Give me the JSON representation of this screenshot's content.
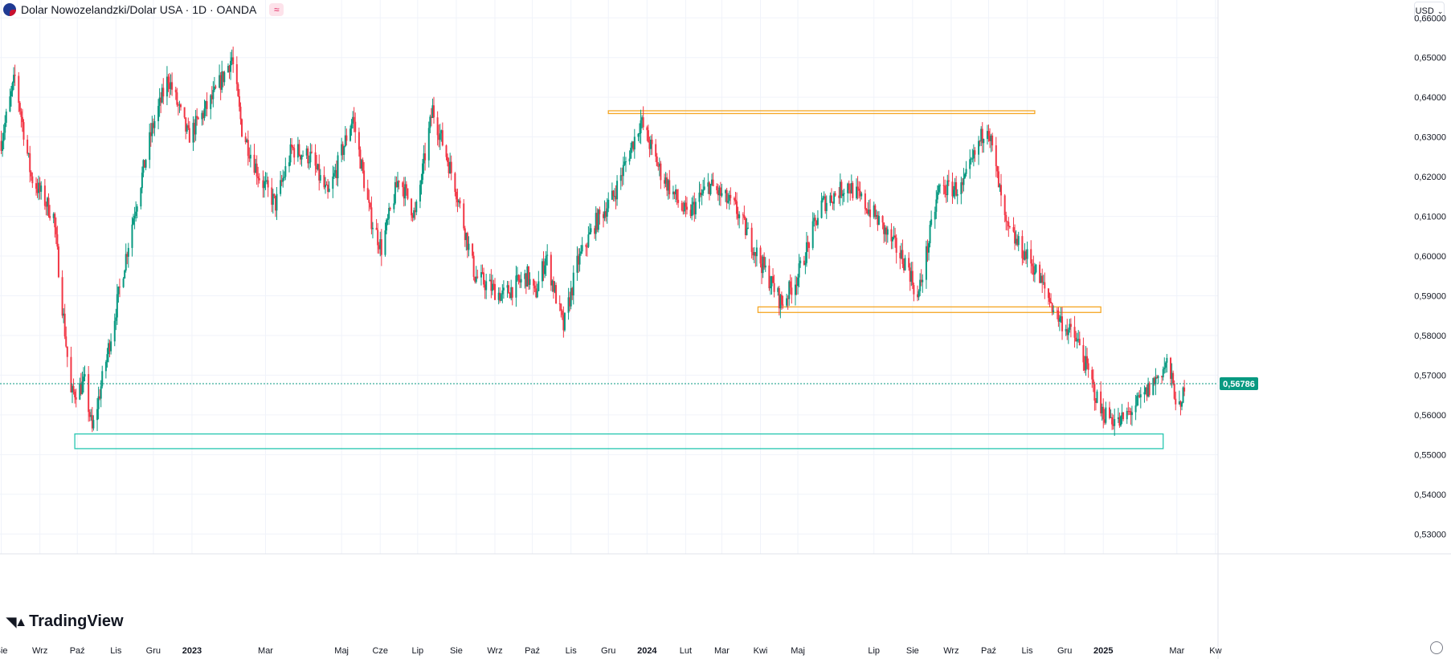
{
  "header": {
    "title": "Dolar Nowozelandzki/Dolar USA · 1D · OANDA",
    "badge_icon": "waves-icon"
  },
  "currency_selector": {
    "value": "USD"
  },
  "logo": {
    "text": "TradingView"
  },
  "last_price": {
    "label": "0,56786",
    "value": 0.56786,
    "color": "#089981"
  },
  "colors": {
    "up": "#089981",
    "down": "#f23645",
    "zone_orange": "#f5a623",
    "zone_teal": "#26c6b0",
    "grid": "#f0f3fa"
  },
  "chart_data": {
    "type": "candlestick",
    "title": "Dolar Nowozelandzki/Dolar USA · 1D · OANDA",
    "ylim": [
      0.525,
      0.6645
    ],
    "y_ticks": [
      {
        "value": 0.66,
        "label": "0,66000"
      },
      {
        "value": 0.65,
        "label": "0,65000"
      },
      {
        "value": 0.64,
        "label": "0,64000"
      },
      {
        "value": 0.63,
        "label": "0,63000"
      },
      {
        "value": 0.62,
        "label": "0,62000"
      },
      {
        "value": 0.61,
        "label": "0,61000"
      },
      {
        "value": 0.6,
        "label": "0,60000"
      },
      {
        "value": 0.59,
        "label": "0,59000"
      },
      {
        "value": 0.58,
        "label": "0,58000"
      },
      {
        "value": 0.57,
        "label": "0,57000"
      },
      {
        "value": 0.56,
        "label": "0,56000"
      },
      {
        "value": 0.55,
        "label": "0,55000"
      },
      {
        "value": 0.54,
        "label": "0,54000"
      },
      {
        "value": 0.53,
        "label": "0,53000"
      }
    ],
    "x_ticks": [
      {
        "date": "2022-08-01",
        "label": "Sie",
        "bold": false
      },
      {
        "date": "2022-09-01",
        "label": "Wrz",
        "bold": false
      },
      {
        "date": "2022-10-01",
        "label": "Paź",
        "bold": false
      },
      {
        "date": "2022-11-01",
        "label": "Lis",
        "bold": false
      },
      {
        "date": "2022-12-01",
        "label": "Gru",
        "bold": false
      },
      {
        "date": "2023-01-01",
        "label": "2023",
        "bold": true
      },
      {
        "date": "2023-03-01",
        "label": "Mar",
        "bold": false
      },
      {
        "date": "2023-05-01",
        "label": "Maj",
        "bold": false
      },
      {
        "date": "2023-06-01",
        "label": "Cze",
        "bold": false
      },
      {
        "date": "2023-07-01",
        "label": "Lip",
        "bold": false
      },
      {
        "date": "2023-08-01",
        "label": "Sie",
        "bold": false
      },
      {
        "date": "2023-09-01",
        "label": "Wrz",
        "bold": false
      },
      {
        "date": "2023-10-01",
        "label": "Paź",
        "bold": false
      },
      {
        "date": "2023-11-01",
        "label": "Lis",
        "bold": false
      },
      {
        "date": "2023-12-01",
        "label": "Gru",
        "bold": false
      },
      {
        "date": "2024-01-01",
        "label": "2024",
        "bold": true
      },
      {
        "date": "2024-02-01",
        "label": "Lut",
        "bold": false
      },
      {
        "date": "2024-03-01",
        "label": "Mar",
        "bold": false
      },
      {
        "date": "2024-04-01",
        "label": "Kwi",
        "bold": false
      },
      {
        "date": "2024-05-01",
        "label": "Maj",
        "bold": false
      },
      {
        "date": "2024-07-01",
        "label": "Lip",
        "bold": false
      },
      {
        "date": "2024-08-01",
        "label": "Sie",
        "bold": false
      },
      {
        "date": "2024-09-01",
        "label": "Wrz",
        "bold": false
      },
      {
        "date": "2024-10-01",
        "label": "Paź",
        "bold": false
      },
      {
        "date": "2024-11-01",
        "label": "Lis",
        "bold": false
      },
      {
        "date": "2024-12-01",
        "label": "Gru",
        "bold": false
      },
      {
        "date": "2025-01-01",
        "label": "2025",
        "bold": true
      },
      {
        "date": "2025-03-01",
        "label": "Mar",
        "bold": false
      },
      {
        "date": "2025-04-01",
        "label": "Kw",
        "bold": false
      }
    ],
    "xlim": [
      "2022-07-31",
      "2025-04-03"
    ],
    "close_path": [
      {
        "date": "2022-08-01",
        "value": 0.629
      },
      {
        "date": "2022-08-12",
        "value": 0.645
      },
      {
        "date": "2022-08-25",
        "value": 0.62
      },
      {
        "date": "2022-09-12",
        "value": 0.61
      },
      {
        "date": "2022-09-26",
        "value": 0.565
      },
      {
        "date": "2022-10-07",
        "value": 0.568
      },
      {
        "date": "2022-10-13",
        "value": 0.556
      },
      {
        "date": "2022-10-28",
        "value": 0.58
      },
      {
        "date": "2022-11-15",
        "value": 0.61
      },
      {
        "date": "2022-11-30",
        "value": 0.632
      },
      {
        "date": "2022-12-13",
        "value": 0.645
      },
      {
        "date": "2022-12-29",
        "value": 0.63
      },
      {
        "date": "2023-01-18",
        "value": 0.64
      },
      {
        "date": "2023-02-02",
        "value": 0.65
      },
      {
        "date": "2023-02-10",
        "value": 0.632
      },
      {
        "date": "2023-02-24",
        "value": 0.62
      },
      {
        "date": "2023-03-09",
        "value": 0.613
      },
      {
        "date": "2023-03-22",
        "value": 0.627
      },
      {
        "date": "2023-04-06",
        "value": 0.625
      },
      {
        "date": "2023-04-20",
        "value": 0.615
      },
      {
        "date": "2023-05-10",
        "value": 0.635
      },
      {
        "date": "2023-05-24",
        "value": 0.61
      },
      {
        "date": "2023-06-02",
        "value": 0.602
      },
      {
        "date": "2023-06-16",
        "value": 0.62
      },
      {
        "date": "2023-06-29",
        "value": 0.61
      },
      {
        "date": "2023-07-13",
        "value": 0.637
      },
      {
        "date": "2023-07-31",
        "value": 0.618
      },
      {
        "date": "2023-08-16",
        "value": 0.595
      },
      {
        "date": "2023-09-07",
        "value": 0.59
      },
      {
        "date": "2023-09-27",
        "value": 0.595
      },
      {
        "date": "2023-10-03",
        "value": 0.59
      },
      {
        "date": "2023-10-12",
        "value": 0.6
      },
      {
        "date": "2023-10-26",
        "value": 0.582
      },
      {
        "date": "2023-11-06",
        "value": 0.598
      },
      {
        "date": "2023-11-20",
        "value": 0.608
      },
      {
        "date": "2023-12-05",
        "value": 0.615
      },
      {
        "date": "2023-12-20",
        "value": 0.628
      },
      {
        "date": "2023-12-27",
        "value": 0.634
      },
      {
        "date": "2024-01-12",
        "value": 0.621
      },
      {
        "date": "2024-02-02",
        "value": 0.61
      },
      {
        "date": "2024-02-20",
        "value": 0.618
      },
      {
        "date": "2024-03-12",
        "value": 0.612
      },
      {
        "date": "2024-04-02",
        "value": 0.598
      },
      {
        "date": "2024-04-18",
        "value": 0.588
      },
      {
        "date": "2024-05-01",
        "value": 0.595
      },
      {
        "date": "2024-05-20",
        "value": 0.613
      },
      {
        "date": "2024-06-10",
        "value": 0.618
      },
      {
        "date": "2024-07-02",
        "value": 0.61
      },
      {
        "date": "2024-07-29",
        "value": 0.597
      },
      {
        "date": "2024-08-05",
        "value": 0.589
      },
      {
        "date": "2024-08-22",
        "value": 0.617
      },
      {
        "date": "2024-09-10",
        "value": 0.617
      },
      {
        "date": "2024-09-30",
        "value": 0.634
      },
      {
        "date": "2024-10-15",
        "value": 0.607
      },
      {
        "date": "2024-11-05",
        "value": 0.598
      },
      {
        "date": "2024-11-25",
        "value": 0.585
      },
      {
        "date": "2024-12-12",
        "value": 0.578
      },
      {
        "date": "2024-12-30",
        "value": 0.561
      },
      {
        "date": "2025-01-14",
        "value": 0.558
      },
      {
        "date": "2025-02-01",
        "value": 0.564
      },
      {
        "date": "2025-02-21",
        "value": 0.573
      },
      {
        "date": "2025-03-04",
        "value": 0.56
      },
      {
        "date": "2025-03-07",
        "value": 0.568
      }
    ],
    "zones": [
      {
        "name": "resistance-zone",
        "color": "#f5a623",
        "x0": "2023-12-01",
        "x1": "2024-11-07",
        "y0": 0.6359,
        "y1": 0.6366
      },
      {
        "name": "support-zone-mid",
        "color": "#f5a623",
        "x0": "2024-03-30",
        "x1": "2024-12-30",
        "y0": 0.5858,
        "y1": 0.5872
      },
      {
        "name": "support-zone-low",
        "color": "#26c6b0",
        "x0": "2022-09-29",
        "x1": "2025-02-18",
        "y0": 0.5515,
        "y1": 0.5552
      }
    ]
  }
}
